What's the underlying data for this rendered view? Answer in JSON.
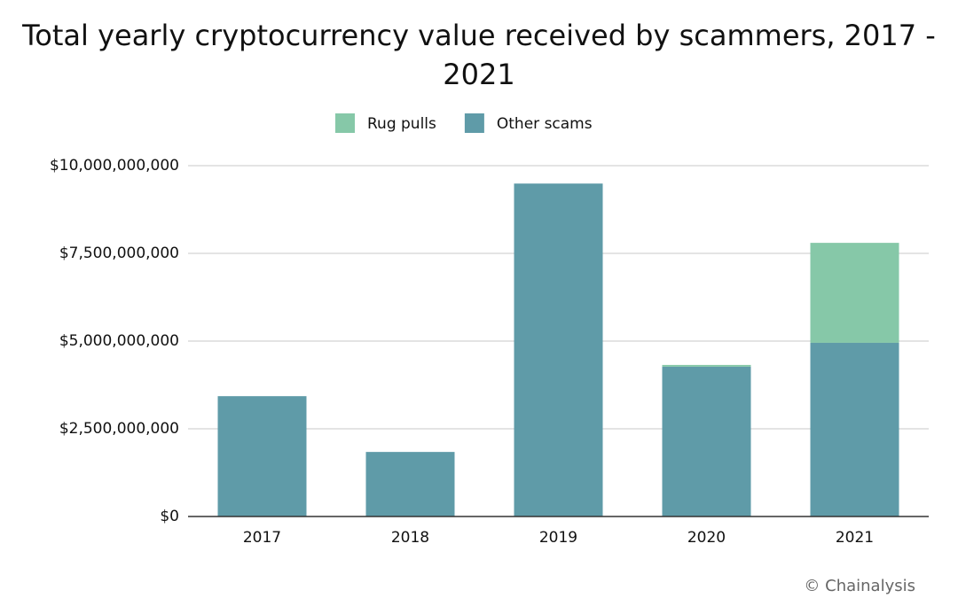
{
  "chart_data": {
    "type": "stacked-bar",
    "title": "Total yearly cryptocurrency value received by scammers, 2017 - 2021",
    "categories": [
      "2017",
      "2018",
      "2019",
      "2020",
      "2021"
    ],
    "series": [
      {
        "name": "Rug pulls",
        "color": "#86c8a8",
        "values": [
          0,
          0,
          0,
          50000000,
          2850000000
        ]
      },
      {
        "name": "Other scams",
        "color": "#5f9ba8",
        "values": [
          3430000000,
          1840000000,
          9490000000,
          4270000000,
          4950000000
        ]
      }
    ],
    "ylim": [
      0,
      10000000000
    ],
    "yticks": [
      {
        "value": 0,
        "label": "$0"
      },
      {
        "value": 2500000000,
        "label": "$2,500,000,000"
      },
      {
        "value": 5000000000,
        "label": "$5,000,000,000"
      },
      {
        "value": 7500000000,
        "label": "$7,500,000,000"
      },
      {
        "value": 10000000000,
        "label": "$10,000,000,000"
      }
    ],
    "grid": true,
    "legend": "top",
    "credit": "© Chainalysis"
  }
}
